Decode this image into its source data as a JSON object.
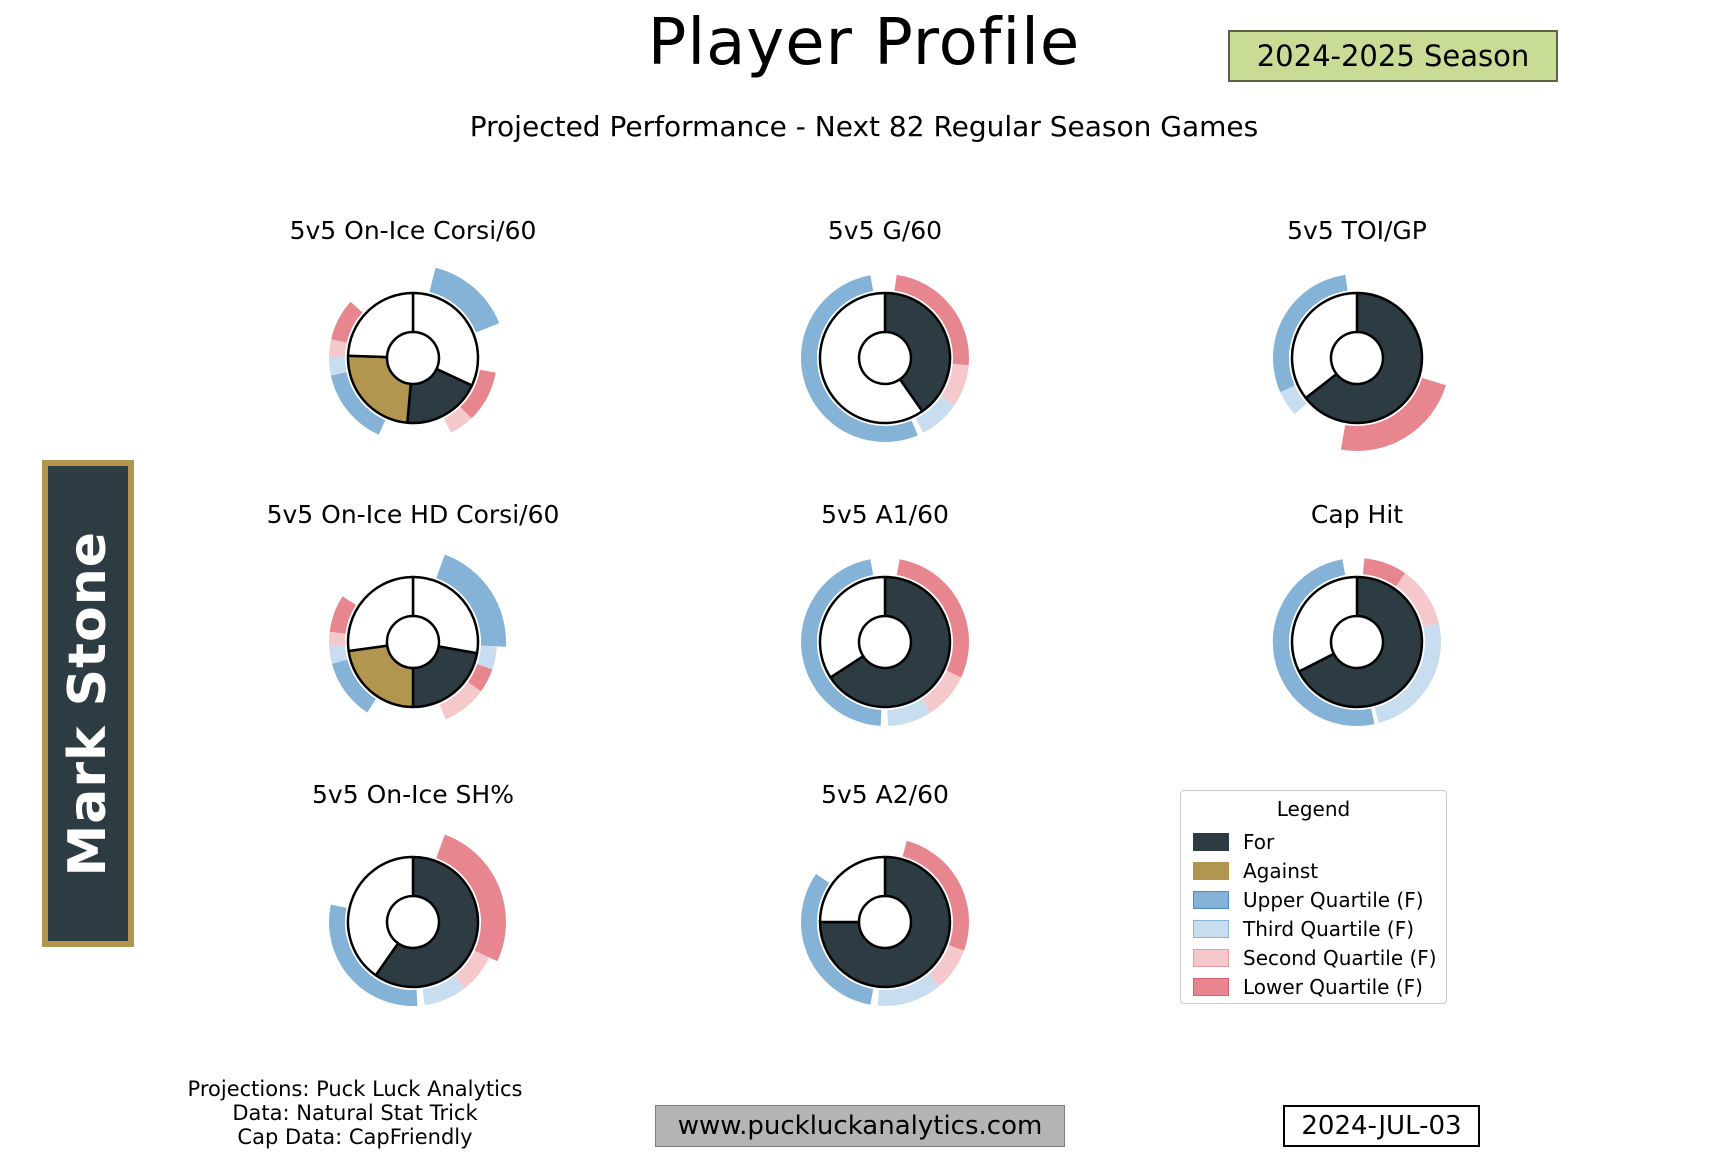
{
  "header": {
    "title": "Player Profile",
    "season_badge": "2024-2025 Season",
    "subtitle": "Projected Performance - Next 82 Regular Season Games"
  },
  "player": {
    "name": "Mark Stone"
  },
  "colors": {
    "for": "#2d3b43",
    "against": "#b2954e",
    "white": "#ffffff",
    "upper_q": "#84b3d7",
    "upper_q_edge": "#4d8ec0",
    "third_q": "#c8def0",
    "third_q_edge": "#86b5d9",
    "second_q": "#f5c8cc",
    "second_q_edge": "#eb9aa3",
    "lower_q": "#e8868f",
    "lower_q_edge": "#d95f6c",
    "season_badge_bg": "#c9dc96",
    "website_box_bg": "#b4b4b4",
    "player_badge_bg": "#2d3b43",
    "player_badge_border": "#b2954e"
  },
  "legend": {
    "title": "Legend",
    "items": [
      {
        "label": "For",
        "fill_key": "for",
        "edge_key": "for"
      },
      {
        "label": "Against",
        "fill_key": "against",
        "edge_key": "against"
      },
      {
        "label": "Upper Quartile (F)",
        "fill_key": "upper_q",
        "edge_key": "upper_q_edge"
      },
      {
        "label": "Third Quartile (F)",
        "fill_key": "third_q",
        "edge_key": "third_q_edge"
      },
      {
        "label": "Second Quartile (F)",
        "fill_key": "second_q",
        "edge_key": "second_q_edge"
      },
      {
        "label": "Lower Quartile (F)",
        "fill_key": "lower_q",
        "edge_key": "lower_q_edge"
      }
    ]
  },
  "footer": {
    "credits": [
      "Projections: Puck Luck Analytics",
      "Data: Natural Stat Trick",
      "Cap Data: CapFriendly"
    ],
    "website": "www.puckluckanalytics.com",
    "date": "2024-JUL-03"
  },
  "chart_data": [
    {
      "type": "donut",
      "title": "5v5 On-Ice Corsi/60",
      "grid": [
        0,
        0
      ],
      "pie": [
        {
          "k": "white",
          "a0": 0,
          "a1": 115,
          "fraction": 0.319
        },
        {
          "k": "for",
          "a0": 115,
          "a1": 185,
          "fraction": 0.194
        },
        {
          "k": "against",
          "a0": 185,
          "a1": 272,
          "fraction": 0.242
        },
        {
          "k": "white",
          "a0": 272,
          "a1": 360,
          "fraction": 0.244
        }
      ],
      "outer_arcs": [
        {
          "k": "upper_q",
          "a0": 14,
          "a1": 68,
          "wide": true
        },
        {
          "k": "lower_q",
          "a0": 100,
          "a1": 136
        },
        {
          "k": "second_q",
          "a0": 136,
          "a1": 153
        },
        {
          "k": "upper_q",
          "a0": 204,
          "a1": 258
        },
        {
          "k": "third_q",
          "a0": 258,
          "a1": 271
        },
        {
          "k": "second_q",
          "a0": 271,
          "a1": 283
        },
        {
          "k": "lower_q",
          "a0": 283,
          "a1": 312
        }
      ]
    },
    {
      "type": "donut",
      "title": "5v5 G/60",
      "grid": [
        0,
        1
      ],
      "pie": [
        {
          "k": "for",
          "a0": 0,
          "a1": 145,
          "fraction": 0.403
        },
        {
          "k": "white",
          "a0": 145,
          "a1": 360,
          "fraction": 0.597
        }
      ],
      "outer_arcs": [
        {
          "k": "lower_q",
          "a0": 8,
          "a1": 95
        },
        {
          "k": "second_q",
          "a0": 95,
          "a1": 124
        },
        {
          "k": "third_q",
          "a0": 124,
          "a1": 153
        },
        {
          "k": "upper_q",
          "a0": 157,
          "a1": 350
        }
      ]
    },
    {
      "type": "donut",
      "title": "5v5 TOI/GP",
      "grid": [
        0,
        2
      ],
      "pie": [
        {
          "k": "for",
          "a0": 0,
          "a1": 232,
          "fraction": 0.644
        },
        {
          "k": "white",
          "a0": 232,
          "a1": 360,
          "fraction": 0.356
        }
      ],
      "outer_arcs": [
        {
          "k": "lower_q",
          "a0": 107,
          "a1": 190,
          "wide": true
        },
        {
          "k": "third_q",
          "a0": 228,
          "a1": 246
        },
        {
          "k": "upper_q",
          "a0": 246,
          "a1": 352
        }
      ]
    },
    {
      "type": "donut",
      "title": "5v5 On-Ice HD Corsi/60",
      "grid": [
        1,
        0
      ],
      "pie": [
        {
          "k": "white",
          "a0": 0,
          "a1": 100,
          "fraction": 0.278
        },
        {
          "k": "for",
          "a0": 100,
          "a1": 180,
          "fraction": 0.222
        },
        {
          "k": "against",
          "a0": 180,
          "a1": 262,
          "fraction": 0.228
        },
        {
          "k": "white",
          "a0": 262,
          "a1": 360,
          "fraction": 0.272
        }
      ],
      "outer_arcs": [
        {
          "k": "upper_q",
          "a0": 20,
          "a1": 93,
          "wide": true
        },
        {
          "k": "third_q",
          "a0": 93,
          "a1": 109
        },
        {
          "k": "lower_q",
          "a0": 109,
          "a1": 126
        },
        {
          "k": "second_q",
          "a0": 126,
          "a1": 157
        },
        {
          "k": "upper_q",
          "a0": 213,
          "a1": 255
        },
        {
          "k": "third_q",
          "a0": 255,
          "a1": 267
        },
        {
          "k": "second_q",
          "a0": 267,
          "a1": 277
        },
        {
          "k": "lower_q",
          "a0": 277,
          "a1": 303
        }
      ]
    },
    {
      "type": "donut",
      "title": "5v5 A1/60",
      "grid": [
        1,
        1
      ],
      "pie": [
        {
          "k": "for",
          "a0": 0,
          "a1": 237,
          "fraction": 0.658
        },
        {
          "k": "white",
          "a0": 237,
          "a1": 360,
          "fraction": 0.342
        }
      ],
      "outer_arcs": [
        {
          "k": "lower_q",
          "a0": 10,
          "a1": 115
        },
        {
          "k": "second_q",
          "a0": 115,
          "a1": 147
        },
        {
          "k": "third_q",
          "a0": 147,
          "a1": 178
        },
        {
          "k": "upper_q",
          "a0": 183,
          "a1": 350
        }
      ]
    },
    {
      "type": "donut",
      "title": "Cap Hit",
      "grid": [
        1,
        2
      ],
      "pie": [
        {
          "k": "for",
          "a0": 0,
          "a1": 243,
          "fraction": 0.675
        },
        {
          "k": "white",
          "a0": 243,
          "a1": 360,
          "fraction": 0.325
        }
      ],
      "outer_arcs": [
        {
          "k": "lower_q",
          "a0": 5,
          "a1": 35
        },
        {
          "k": "second_q",
          "a0": 35,
          "a1": 77
        },
        {
          "k": "third_q",
          "a0": 77,
          "a1": 165
        },
        {
          "k": "upper_q",
          "a0": 168,
          "a1": 350
        }
      ]
    },
    {
      "type": "donut",
      "title": "5v5 On-Ice SH%",
      "grid": [
        2,
        0
      ],
      "pie": [
        {
          "k": "for",
          "a0": 0,
          "a1": 215,
          "fraction": 0.597
        },
        {
          "k": "white",
          "a0": 215,
          "a1": 360,
          "fraction": 0.403
        }
      ],
      "outer_arcs": [
        {
          "k": "lower_q",
          "a0": 20,
          "a1": 115,
          "wide": true
        },
        {
          "k": "second_q",
          "a0": 115,
          "a1": 142
        },
        {
          "k": "third_q",
          "a0": 142,
          "a1": 172
        },
        {
          "k": "upper_q",
          "a0": 177,
          "a1": 282
        }
      ]
    },
    {
      "type": "donut",
      "title": "5v5 A2/60",
      "grid": [
        2,
        1
      ],
      "pie": [
        {
          "k": "for",
          "a0": 0,
          "a1": 270,
          "fraction": 0.75
        },
        {
          "k": "white",
          "a0": 270,
          "a1": 360,
          "fraction": 0.25
        }
      ],
      "outer_arcs": [
        {
          "k": "lower_q",
          "a0": 15,
          "a1": 110
        },
        {
          "k": "second_q",
          "a0": 110,
          "a1": 140
        },
        {
          "k": "third_q",
          "a0": 140,
          "a1": 185
        },
        {
          "k": "upper_q",
          "a0": 190,
          "a1": 305
        }
      ]
    }
  ]
}
